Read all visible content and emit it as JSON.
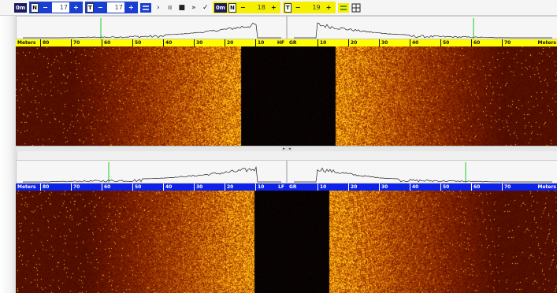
{
  "toolbar": {
    "chip_label": "0m",
    "group1": {
      "n_minus": "N",
      "minus_label": "−",
      "n_value": "17",
      "plus_label": "+"
    },
    "group2": {
      "t_minus": "T",
      "minus_label": "−",
      "t_value": "17",
      "plus_label": "+"
    },
    "play_label": "›",
    "pause_label": "ıı",
    "stop_label": "■",
    "forward_label": "»",
    "check_label": "✓",
    "chip2_label": "0m",
    "group3": {
      "n_minus": "N",
      "minus_label": "−",
      "n_value": "18",
      "plus_label": "+"
    },
    "group4": {
      "t_minus": "T",
      "minus_label": "−",
      "t_value": "19",
      "plus_label": "+"
    }
  },
  "panels": {
    "hf_left": {
      "unit": "Meters",
      "ticks": [
        "80",
        "70",
        "60",
        "50",
        "40",
        "30",
        "20",
        "10"
      ],
      "end_label": "HF"
    },
    "gr_right_top": {
      "start_label": "GR",
      "ticks": [
        "10",
        "20",
        "30",
        "40",
        "50",
        "60",
        "70"
      ],
      "unit": "Meters"
    },
    "lf_left": {
      "unit": "Meters",
      "ticks": [
        "80",
        "70",
        "60",
        "50",
        "40",
        "30",
        "20",
        "10"
      ],
      "end_label": "LF"
    },
    "gr_right_bottom": {
      "start_label": "GR",
      "ticks": [
        "10",
        "20",
        "30",
        "40",
        "50",
        "60",
        "70"
      ],
      "unit": "Meters"
    }
  },
  "colors": {
    "scale_yellow": "#ffff00",
    "scale_blue": "#0c22e8",
    "sonar_dark": "#2a1200",
    "sonar_bright": "#ffd400",
    "marker_green": "#22cc22"
  },
  "scrollbar": {
    "left_arrow": "◂",
    "right_arrow": "▸"
  }
}
